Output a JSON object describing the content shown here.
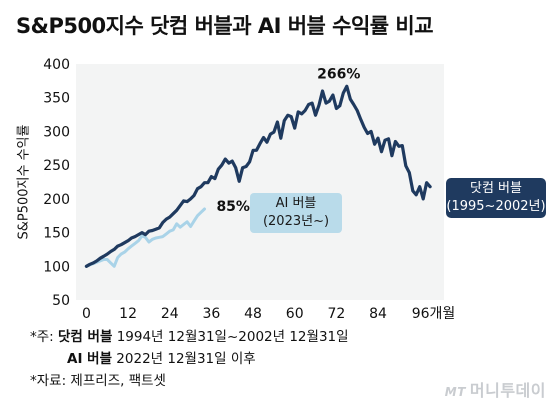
{
  "title": "S&P500지수 닷컴 버블과 AI 버블 수익률 비교",
  "chart_data": {
    "type": "line",
    "ylabel": "S&P500지수 수익률",
    "xlabel": "",
    "x_unit": "개월",
    "ylim": [
      50,
      400
    ],
    "xlim": [
      -3,
      103
    ],
    "yticks": [
      50,
      100,
      150,
      200,
      250,
      300,
      350,
      400
    ],
    "xticks": [
      0,
      12,
      24,
      36,
      48,
      60,
      72,
      84,
      96
    ],
    "xtick_labels": [
      "0",
      "12",
      "24",
      "36",
      "48",
      "60",
      "72",
      "84",
      "96개월"
    ],
    "grid": false,
    "series": [
      {
        "name": "닷컴 버블",
        "period": "(1995~2002년)",
        "color": "#1f3a5f",
        "x": [
          0,
          1,
          2,
          3,
          4,
          5,
          6,
          7,
          8,
          9,
          10,
          11,
          12,
          13,
          14,
          15,
          16,
          17,
          18,
          19,
          20,
          21,
          22,
          23,
          24,
          25,
          26,
          27,
          28,
          29,
          30,
          31,
          32,
          33,
          34,
          35,
          36,
          37,
          38,
          39,
          40,
          41,
          42,
          43,
          44,
          45,
          46,
          47,
          48,
          49,
          50,
          51,
          52,
          53,
          54,
          55,
          56,
          57,
          58,
          59,
          60,
          61,
          62,
          63,
          64,
          65,
          66,
          67,
          68,
          69,
          70,
          71,
          72,
          73,
          74,
          75,
          76,
          77,
          78,
          79,
          80,
          81,
          82,
          83,
          84,
          85,
          86,
          87,
          88,
          89,
          90,
          91,
          92,
          93,
          94,
          95,
          96,
          97,
          98,
          99
        ],
        "y": [
          100,
          103,
          105,
          108,
          112,
          115,
          118,
          122,
          125,
          130,
          132,
          135,
          138,
          142,
          144,
          147,
          150,
          147,
          152,
          153,
          155,
          157,
          165,
          170,
          173,
          178,
          183,
          190,
          197,
          196,
          200,
          205,
          215,
          218,
          224,
          224,
          233,
          230,
          244,
          250,
          259,
          253,
          256,
          246,
          226,
          246,
          248,
          255,
          272,
          272,
          282,
          291,
          284,
          296,
          299,
          314,
          290,
          316,
          324,
          322,
          305,
          329,
          326,
          331,
          340,
          342,
          324,
          339,
          360,
          342,
          345,
          354,
          334,
          338,
          357,
          367,
          348,
          340,
          331,
          318,
          306,
          297,
          300,
          281,
          290,
          270,
          287,
          289,
          264,
          285,
          278,
          279,
          249,
          239,
          212,
          206,
          218,
          200,
          224,
          218
        ],
        "peak_label": "266%"
      },
      {
        "name": "AI 버블",
        "period": "(2023년~)",
        "color": "#a9d3e8",
        "x": [
          0,
          1,
          2,
          3,
          4,
          5,
          6,
          7,
          8,
          9,
          10,
          11,
          12,
          13,
          14,
          15,
          16,
          17,
          18,
          19,
          20,
          21,
          22,
          23,
          24,
          25,
          26,
          27,
          28,
          29,
          30,
          31,
          32,
          33,
          34
        ],
        "y": [
          100,
          102,
          104,
          106,
          108,
          110,
          110,
          105,
          100,
          113,
          118,
          121,
          126,
          130,
          134,
          138,
          145,
          143,
          136,
          140,
          142,
          143,
          144,
          148,
          152,
          154,
          163,
          158,
          162,
          166,
          159,
          167,
          175,
          180,
          185
        ],
        "end_label": "85%"
      }
    ]
  },
  "notes": {
    "line1_prefix": "*주: ",
    "line1_bold": "닷컴 버블",
    "line1_text": " 1994년 12월31일~2002년 12월31일",
    "line2_bold": "AI 버블",
    "line2_text": " 2022년 12월31일 이후",
    "line3": "*자료: 제프리즈, 팩트셋"
  },
  "brand": {
    "prefix": "MT",
    "name": "머니투데이"
  }
}
